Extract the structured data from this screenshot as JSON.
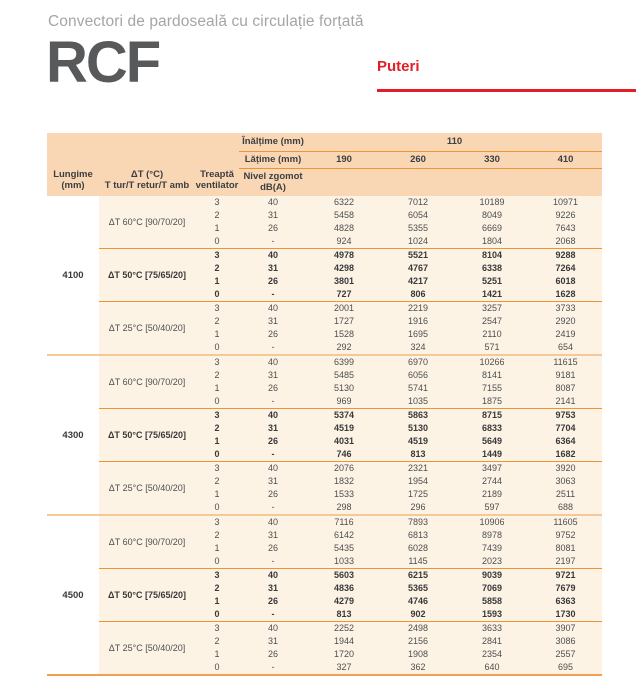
{
  "page": {
    "subtitle": "Convectori de pardoseală cu circulație forțată",
    "product_code": "RCF",
    "section_label": "Puteri"
  },
  "colors": {
    "accent_red": "#E41E26",
    "header_band": "#F9D7B4",
    "body_band": "#FCF3E4",
    "divider_orange": "#EE9435",
    "divider_light": "#F6C897",
    "bottom_rule": "#EFA052",
    "text_dark": "#3D3E40",
    "text_gray": "#A3A5A8"
  },
  "table": {
    "header": {
      "lungime_l1": "Lungime",
      "lungime_l2": "(mm)",
      "dt_l1": "ΔT (°C)",
      "dt_l2": "T tur/T retur/T amb",
      "treapta_l1": "Treaptă",
      "treapta_l2": "ventilator",
      "zgomot_l1": "Nivel zgomot",
      "zgomot_l2": "dB(A)",
      "height_label": "Înălțime (mm)",
      "height_value": "110",
      "width_label": "Lățime (mm)",
      "width_values": [
        "190",
        "260",
        "330",
        "410"
      ]
    },
    "groups": [
      {
        "lungime": "4100",
        "dt_groups": [
          {
            "label": "ΔT 60°C [90/70/20]",
            "bold": false,
            "rows": [
              [
                "3",
                "40",
                "6322",
                "7012",
                "10189",
                "10971"
              ],
              [
                "2",
                "31",
                "5458",
                "6054",
                "8049",
                "9226"
              ],
              [
                "1",
                "26",
                "4828",
                "5355",
                "6669",
                "7643"
              ],
              [
                "0",
                "-",
                "924",
                "1024",
                "1804",
                "2068"
              ]
            ]
          },
          {
            "label": "ΔT 50°C [75/65/20]",
            "bold": true,
            "rows": [
              [
                "3",
                "40",
                "4978",
                "5521",
                "8104",
                "9288"
              ],
              [
                "2",
                "31",
                "4298",
                "4767",
                "6338",
                "7264"
              ],
              [
                "1",
                "26",
                "3801",
                "4217",
                "5251",
                "6018"
              ],
              [
                "0",
                "-",
                "727",
                "806",
                "1421",
                "1628"
              ]
            ]
          },
          {
            "label": "ΔT 25°C [50/40/20]",
            "bold": false,
            "rows": [
              [
                "3",
                "40",
                "2001",
                "2219",
                "3257",
                "3733"
              ],
              [
                "2",
                "31",
                "1727",
                "1916",
                "2547",
                "2920"
              ],
              [
                "1",
                "26",
                "1528",
                "1695",
                "2110",
                "2419"
              ],
              [
                "0",
                "-",
                "292",
                "324",
                "571",
                "654"
              ]
            ]
          }
        ]
      },
      {
        "lungime": "4300",
        "dt_groups": [
          {
            "label": "ΔT 60°C [90/70/20]",
            "bold": false,
            "rows": [
              [
                "3",
                "40",
                "6399",
                "6970",
                "10266",
                "11615"
              ],
              [
                "2",
                "31",
                "5485",
                "6056",
                "8141",
                "9181"
              ],
              [
                "1",
                "26",
                "5130",
                "5741",
                "7155",
                "8087"
              ],
              [
                "0",
                "-",
                "969",
                "1035",
                "1875",
                "2141"
              ]
            ]
          },
          {
            "label": "ΔT 50°C [75/65/20]",
            "bold": true,
            "rows": [
              [
                "3",
                "40",
                "5374",
                "5863",
                "8715",
                "9753"
              ],
              [
                "2",
                "31",
                "4519",
                "5130",
                "6833",
                "7704"
              ],
              [
                "1",
                "26",
                "4031",
                "4519",
                "5649",
                "6364"
              ],
              [
                "0",
                "-",
                "746",
                "813",
                "1449",
                "1682"
              ]
            ]
          },
          {
            "label": "ΔT 25°C [50/40/20]",
            "bold": false,
            "rows": [
              [
                "3",
                "40",
                "2076",
                "2321",
                "3497",
                "3920"
              ],
              [
                "2",
                "31",
                "1832",
                "1954",
                "2744",
                "3063"
              ],
              [
                "1",
                "26",
                "1533",
                "1725",
                "2189",
                "2511"
              ],
              [
                "0",
                "-",
                "298",
                "296",
                "597",
                "688"
              ]
            ]
          }
        ]
      },
      {
        "lungime": "4500",
        "dt_groups": [
          {
            "label": "ΔT 60°C [90/70/20]",
            "bold": false,
            "rows": [
              [
                "3",
                "40",
                "7116",
                "7893",
                "10906",
                "11605"
              ],
              [
                "2",
                "31",
                "6142",
                "6813",
                "8978",
                "9752"
              ],
              [
                "1",
                "26",
                "5435",
                "6028",
                "7439",
                "8081"
              ],
              [
                "0",
                "-",
                "1033",
                "1145",
                "2023",
                "2197"
              ]
            ]
          },
          {
            "label": "ΔT 50°C [75/65/20]",
            "bold": true,
            "rows": [
              [
                "3",
                "40",
                "5603",
                "6215",
                "9039",
                "9721"
              ],
              [
                "2",
                "31",
                "4836",
                "5365",
                "7069",
                "7679"
              ],
              [
                "1",
                "26",
                "4279",
                "4746",
                "5858",
                "6363"
              ],
              [
                "0",
                "-",
                "813",
                "902",
                "1593",
                "1730"
              ]
            ]
          },
          {
            "label": "ΔT 25°C [50/40/20]",
            "bold": false,
            "rows": [
              [
                "3",
                "40",
                "2252",
                "2498",
                "3633",
                "3907"
              ],
              [
                "2",
                "31",
                "1944",
                "2156",
                "2841",
                "3086"
              ],
              [
                "1",
                "26",
                "1720",
                "1908",
                "2354",
                "2557"
              ],
              [
                "0",
                "-",
                "327",
                "362",
                "640",
                "695"
              ]
            ]
          }
        ]
      }
    ]
  }
}
